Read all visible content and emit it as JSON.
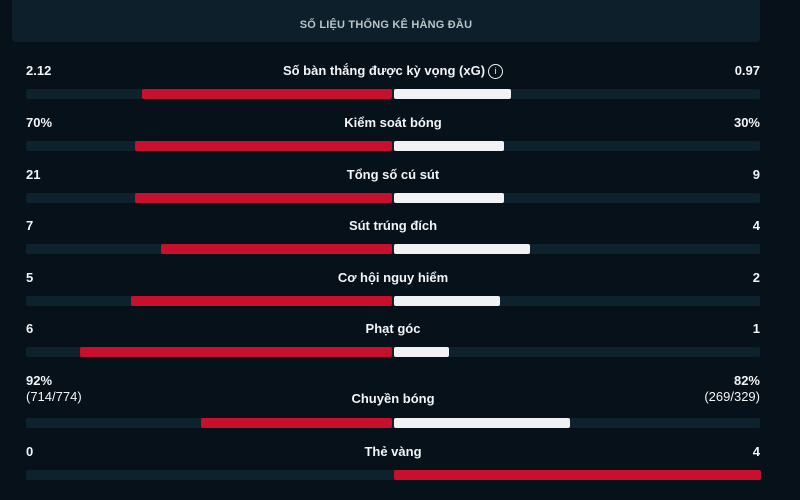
{
  "header": {
    "title": "SỐ LIỆU THỐNG KÊ HÀNG ĐẦU"
  },
  "colors": {
    "home": "#c8102e",
    "away": "#f0f2f3",
    "track": "#0e222d",
    "background": "#06111a"
  },
  "stats": [
    {
      "label": "Số bàn thắng được kỳ vọng (xG)",
      "info_icon": "info-icon",
      "home": "2.12",
      "away": "0.97",
      "home_fill": 0.68,
      "away_fill": 0.32,
      "away_color": "away"
    },
    {
      "label": "Kiểm soát bóng",
      "home": "70%",
      "away": "30%",
      "home_fill": 0.7,
      "away_fill": 0.3,
      "away_color": "away"
    },
    {
      "label": "Tổng số cú sút",
      "home": "21",
      "away": "9",
      "home_fill": 0.7,
      "away_fill": 0.3,
      "away_color": "away"
    },
    {
      "label": "Sút trúng đích",
      "home": "7",
      "away": "4",
      "home_fill": 0.63,
      "away_fill": 0.37,
      "away_color": "away"
    },
    {
      "label": "Cơ hội nguy hiểm",
      "home": "5",
      "away": "2",
      "home_fill": 0.71,
      "away_fill": 0.29,
      "away_color": "away"
    },
    {
      "label": "Phạt góc",
      "home": "6",
      "away": "1",
      "home_fill": 0.85,
      "away_fill": 0.15,
      "away_color": "away"
    },
    {
      "label": "Chuyền bóng",
      "home": "92%",
      "home_sub": "(714/774)",
      "away": "82%",
      "away_sub": "(269/329)",
      "home_fill": 0.52,
      "away_fill": 0.48,
      "away_color": "away"
    },
    {
      "label": "Thẻ vàng",
      "home": "0",
      "away": "4",
      "home_fill": 0,
      "away_fill": 1.0,
      "away_color": "home"
    }
  ]
}
